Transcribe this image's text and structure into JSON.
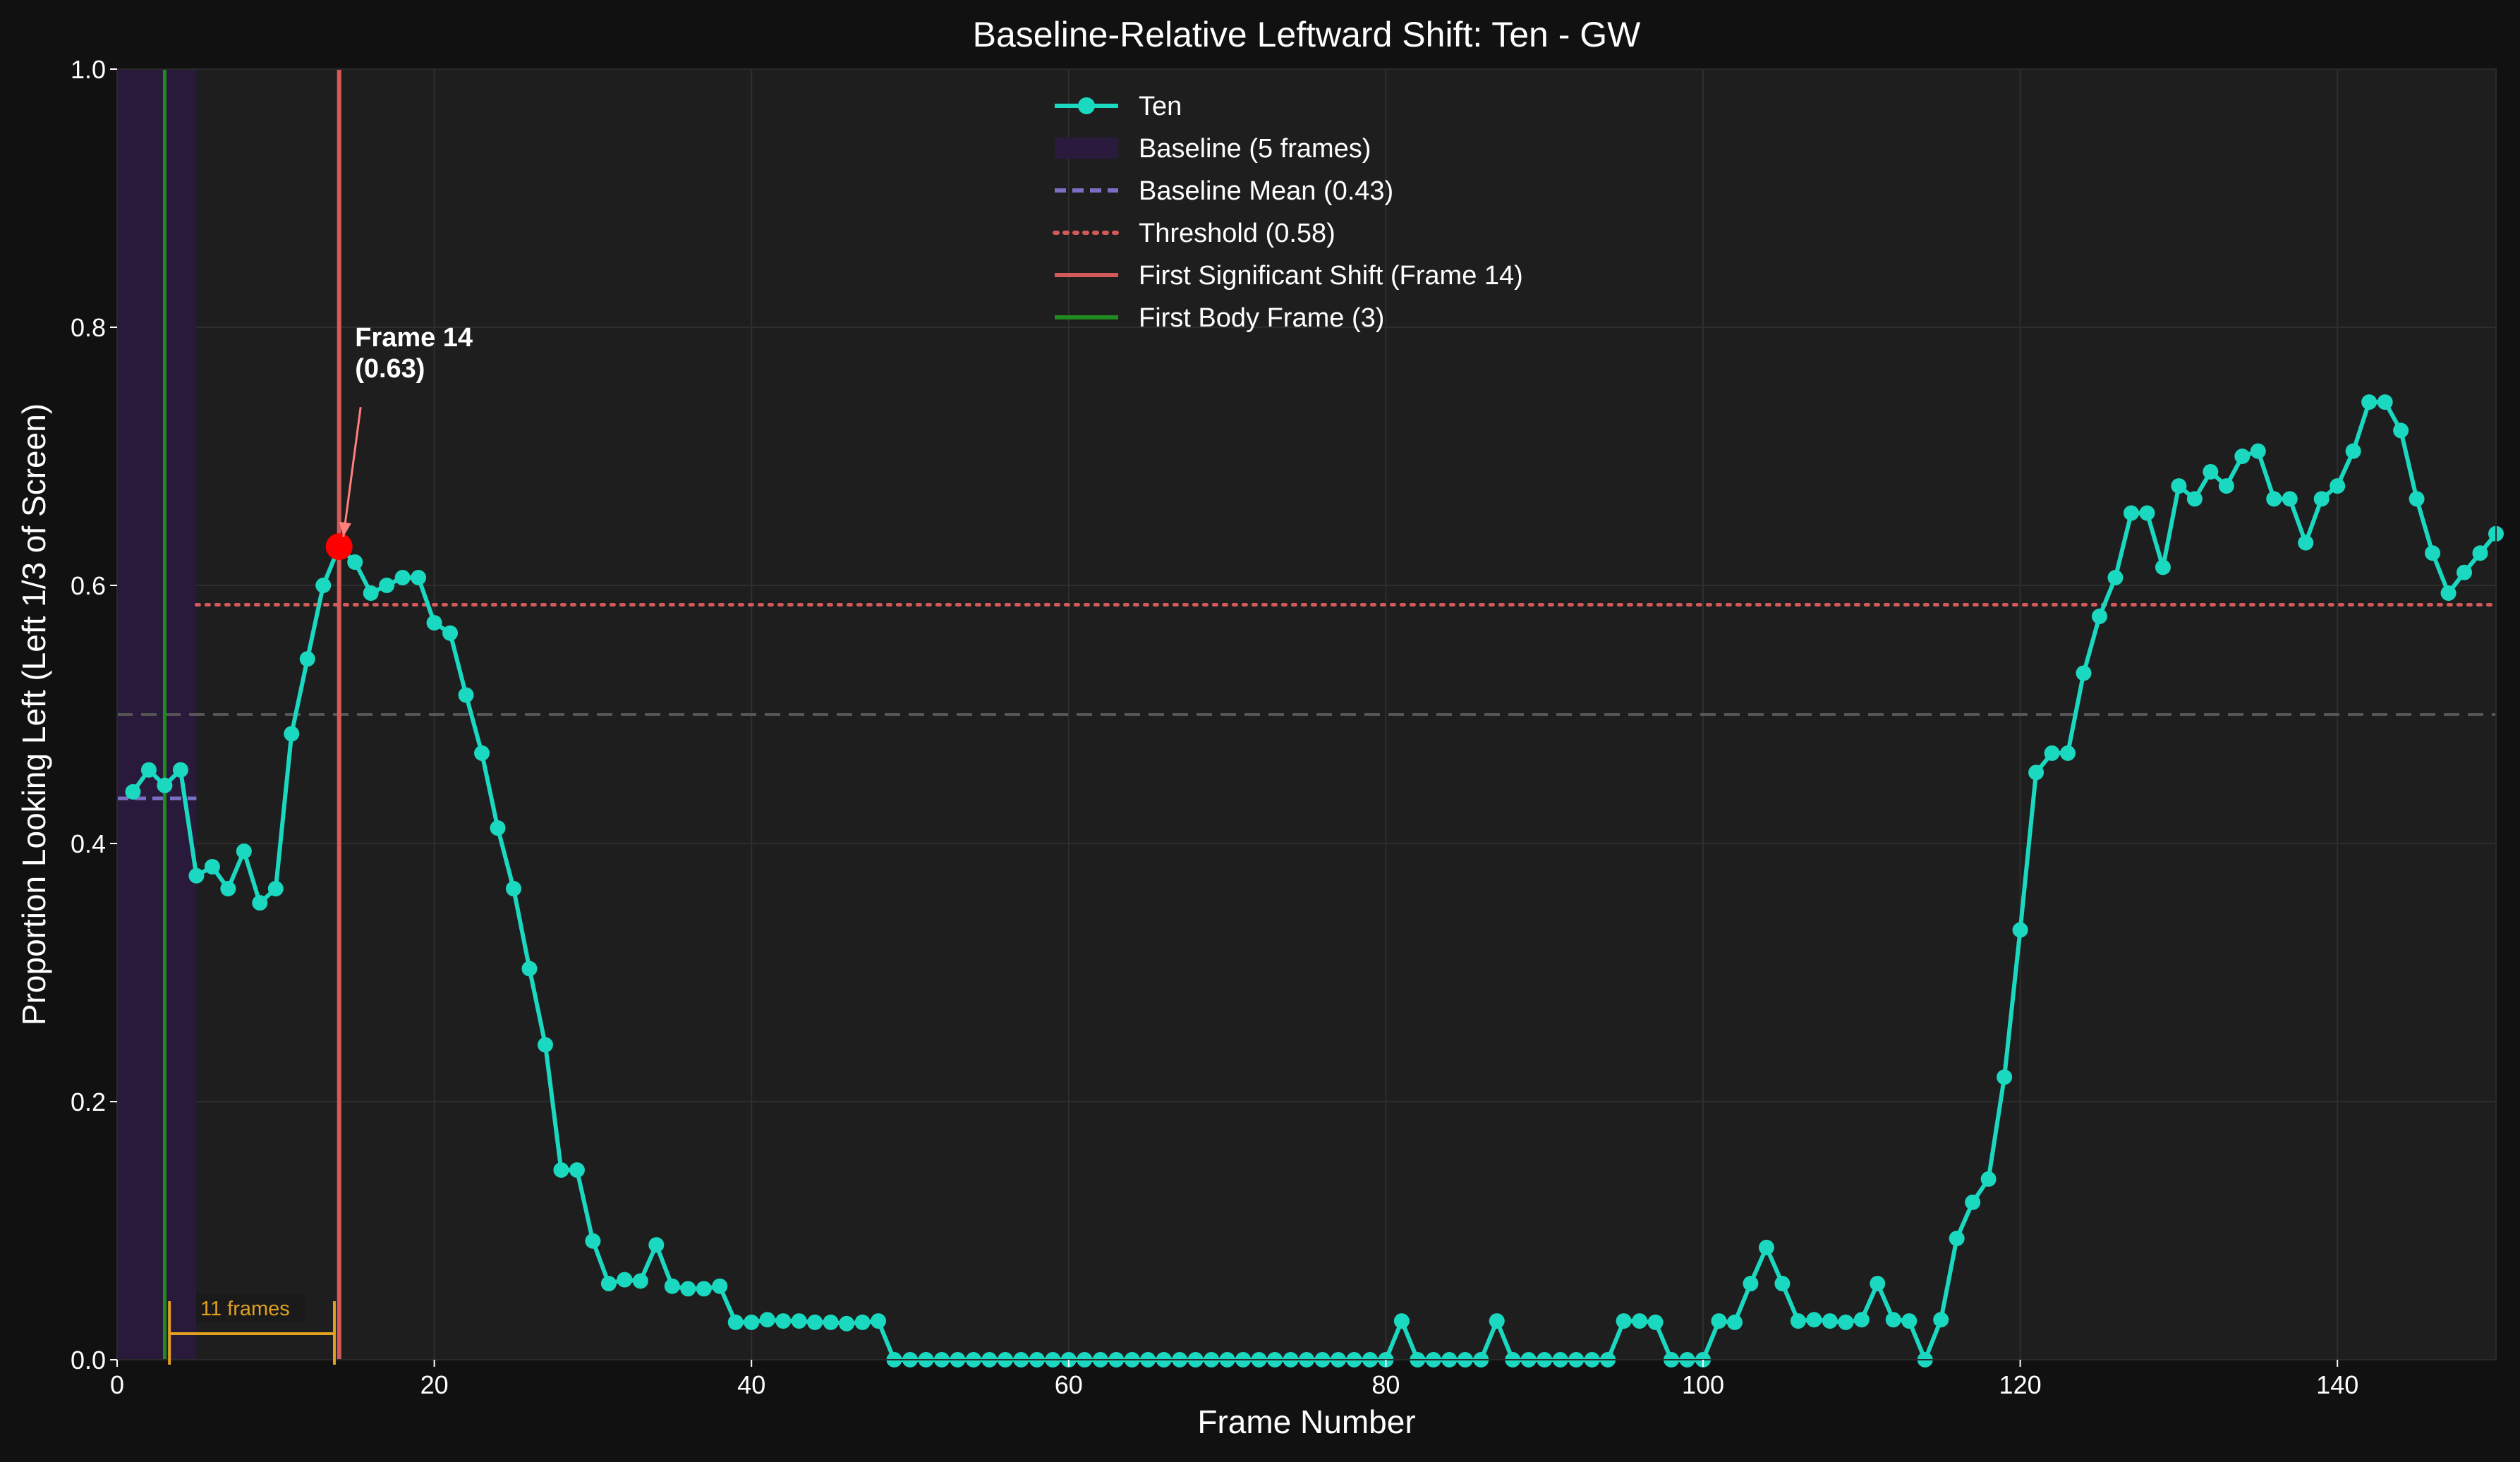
{
  "chart_data": {
    "type": "line",
    "title": "Baseline-Relative Leftward Shift: Ten - GW",
    "xlabel": "Frame Number",
    "ylabel": "Proportion Looking Left (Left 1/3 of Screen)",
    "xlim": [
      0,
      150
    ],
    "ylim": [
      0,
      1.0
    ],
    "xticks": [
      0,
      20,
      40,
      60,
      80,
      100,
      120,
      140
    ],
    "yticks": [
      0.0,
      0.2,
      0.4,
      0.6,
      0.8,
      1.0
    ],
    "grid": true,
    "legend_position": "top-center",
    "series": [
      {
        "name": "Ten",
        "color": "#1ad9c0",
        "x": [
          1,
          2,
          3,
          4,
          5,
          6,
          7,
          8,
          9,
          10,
          11,
          12,
          13,
          14,
          15,
          16,
          17,
          18,
          19,
          20,
          21,
          22,
          23,
          24,
          25,
          26,
          27,
          28,
          29,
          30,
          31,
          32,
          33,
          34,
          35,
          36,
          37,
          38,
          39,
          40,
          41,
          42,
          43,
          44,
          45,
          46,
          47,
          48,
          49,
          50,
          51,
          52,
          53,
          54,
          55,
          56,
          57,
          58,
          59,
          60,
          61,
          62,
          63,
          64,
          65,
          66,
          67,
          68,
          69,
          70,
          71,
          72,
          73,
          74,
          75,
          76,
          77,
          78,
          79,
          80,
          81,
          82,
          83,
          84,
          85,
          86,
          87,
          88,
          89,
          90,
          91,
          92,
          93,
          94,
          95,
          96,
          97,
          98,
          99,
          100,
          101,
          102,
          103,
          104,
          105,
          106,
          107,
          108,
          109,
          110,
          111,
          112,
          113,
          114,
          115,
          116,
          117,
          118,
          119,
          120,
          121,
          122,
          123,
          124,
          125,
          126,
          127,
          128,
          129,
          130,
          131,
          132,
          133,
          134,
          135,
          136,
          137,
          138,
          139,
          140,
          141,
          142,
          143,
          144,
          145,
          146,
          147,
          148,
          149,
          150
        ],
        "y": [
          0.44,
          0.457,
          0.445,
          0.457,
          0.375,
          0.382,
          0.365,
          0.394,
          0.354,
          0.365,
          0.485,
          0.543,
          0.6,
          0.63,
          0.618,
          0.594,
          0.6,
          0.606,
          0.606,
          0.571,
          0.563,
          0.515,
          0.47,
          0.412,
          0.365,
          0.303,
          0.244,
          0.147,
          0.147,
          0.092,
          0.059,
          0.062,
          0.061,
          0.089,
          0.057,
          0.055,
          0.055,
          0.057,
          0.029,
          0.029,
          0.031,
          0.03,
          0.03,
          0.029,
          0.029,
          0.028,
          0.029,
          0.03,
          0.0,
          0.0,
          0.0,
          0.0,
          0.0,
          0.0,
          0.0,
          0.0,
          0.0,
          0.0,
          0.0,
          0.0,
          0.0,
          0.0,
          0.0,
          0.0,
          0.0,
          0.0,
          0.0,
          0.0,
          0.0,
          0.0,
          0.0,
          0.0,
          0.0,
          0.0,
          0.0,
          0.0,
          0.0,
          0.0,
          0.0,
          0.0,
          0.03,
          0.0,
          0.0,
          0.0,
          0.0,
          0.0,
          0.03,
          0.0,
          0.0,
          0.0,
          0.0,
          0.0,
          0.0,
          0.0,
          0.03,
          0.03,
          0.029,
          0.0,
          0.0,
          0.0,
          0.03,
          0.029,
          0.059,
          0.087,
          0.059,
          0.03,
          0.031,
          0.03,
          0.029,
          0.031,
          0.059,
          0.031,
          0.03,
          0.0,
          0.031,
          0.094,
          0.122,
          0.14,
          0.219,
          0.333,
          0.455,
          0.47,
          0.47,
          0.532,
          0.576,
          0.606,
          0.656,
          0.656,
          0.614,
          0.677,
          0.667,
          0.688,
          0.677,
          0.7,
          0.704,
          0.667,
          0.667,
          0.633,
          0.667,
          0.677,
          0.704,
          0.742,
          0.742,
          0.72,
          0.667,
          0.625,
          0.594,
          0.61,
          0.625,
          0.64
        ]
      }
    ],
    "baseline_region": {
      "x_start": 0,
      "x_end": 5,
      "color": "#2a1a3e"
    },
    "baseline_mean": {
      "value": 0.435,
      "x_start": 0,
      "x_end": 5,
      "color": "#7b6fc4"
    },
    "threshold": {
      "value": 0.585,
      "x_start": 5,
      "x_end": 150,
      "color": "#d45a5a"
    },
    "reference_line": {
      "value": 0.5,
      "color": "#555555"
    },
    "first_shift": {
      "x": 14,
      "y": 0.63,
      "color": "#d45a5a",
      "marker_color": "#ff0000"
    },
    "first_body_frame": {
      "x": 3,
      "color": "#1f8a1f"
    },
    "annotation": {
      "line1": "Frame 14",
      "line2": "(0.63)",
      "text_x": 15,
      "text_y": 0.76,
      "color": "#ff7f7f"
    },
    "span": {
      "x_start": 3.3,
      "x_end": 13.7,
      "label": "11 frames",
      "color": "#e0a020"
    },
    "legend": [
      {
        "label": "Ten",
        "style": "line-marker",
        "color": "#1ad9c0"
      },
      {
        "label": "Baseline (5 frames)",
        "style": "patch",
        "color": "#2a1a3e"
      },
      {
        "label": "Baseline Mean (0.43)",
        "style": "dashed",
        "color": "#7b6fc4"
      },
      {
        "label": "Threshold (0.58)",
        "style": "dotted",
        "color": "#d45a5a"
      },
      {
        "label": "First Significant Shift (Frame 14)",
        "style": "solid",
        "color": "#d45a5a"
      },
      {
        "label": "First Body Frame (3)",
        "style": "solid",
        "color": "#1f8a1f"
      }
    ]
  }
}
